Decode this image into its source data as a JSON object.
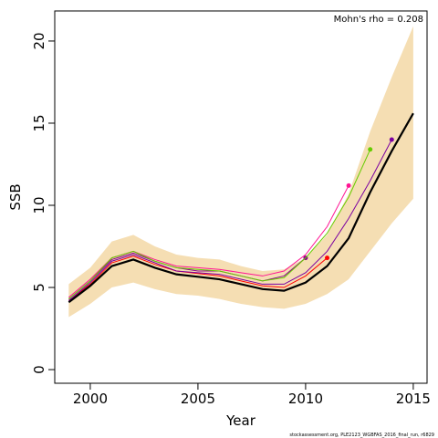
{
  "chart_data": {
    "type": "line",
    "x_label": "Year",
    "y_label": "SSB",
    "annotation": "Mohn's rho = 0.208",
    "footer": "stockassessment.org, PLE2123_WGBFAS_2016_final_run, r6829",
    "x": [
      1999,
      2000,
      2001,
      2002,
      2003,
      2004,
      2005,
      2006,
      2007,
      2008,
      2009,
      2010,
      2011,
      2012,
      2013,
      2014,
      2015
    ],
    "xlim": [
      1998.35,
      2015.64
    ],
    "xticks": [
      2000,
      2005,
      2010,
      2015
    ],
    "ylim": [
      -0.83,
      21.83
    ],
    "yticks": [
      0,
      5,
      10,
      15,
      20
    ],
    "band": {
      "color": "#f5deb3",
      "lower": [
        3.2,
        4.0,
        5.0,
        5.3,
        4.9,
        4.6,
        4.5,
        4.3,
        4.0,
        3.8,
        3.7,
        4.0,
        4.6,
        5.5,
        7.2,
        8.9,
        10.4
      ],
      "upper": [
        5.2,
        6.2,
        7.8,
        8.2,
        7.5,
        7.0,
        6.8,
        6.7,
        6.3,
        6.0,
        6.1,
        6.8,
        8.2,
        10.7,
        14.5,
        17.8,
        20.9
      ]
    },
    "series": [
      {
        "color": "#ff0000",
        "end_dot": true,
        "values": [
          4.2,
          5.2,
          6.5,
          6.9,
          6.4,
          6.0,
          5.85,
          5.7,
          5.4,
          5.1,
          5.0,
          5.7,
          6.8,
          null,
          null,
          null,
          null
        ]
      },
      {
        "color": "#8b008b",
        "end_dot": true,
        "values": [
          4.3,
          5.4,
          6.7,
          7.1,
          6.6,
          6.2,
          6.0,
          6.0,
          5.7,
          5.4,
          5.7,
          6.8,
          null,
          null,
          null,
          null,
          null
        ]
      },
      {
        "color": "#ff1493",
        "end_dot": true,
        "values": [
          4.4,
          5.5,
          6.8,
          7.2,
          6.7,
          6.3,
          6.2,
          6.1,
          5.9,
          5.7,
          6.0,
          7.0,
          8.7,
          11.2,
          null,
          null,
          null
        ]
      },
      {
        "color": "#66cc00",
        "end_dot": true,
        "values": [
          4.3,
          5.4,
          6.8,
          7.2,
          6.6,
          6.2,
          6.1,
          6.0,
          5.7,
          5.4,
          5.6,
          6.8,
          8.3,
          10.5,
          13.4,
          null,
          null
        ]
      },
      {
        "color": "#7b00a0",
        "end_dot": true,
        "values": [
          4.2,
          5.3,
          6.6,
          7.0,
          6.5,
          6.0,
          5.9,
          5.8,
          5.5,
          5.2,
          5.2,
          5.9,
          7.2,
          9.2,
          11.5,
          14.0,
          null
        ]
      },
      {
        "color": "#000000",
        "end_dot": false,
        "width": 2.2,
        "values": [
          4.1,
          5.1,
          6.3,
          6.7,
          6.2,
          5.8,
          5.65,
          5.5,
          5.2,
          4.9,
          4.8,
          5.3,
          6.3,
          8.0,
          10.8,
          13.3,
          15.6
        ]
      }
    ]
  }
}
